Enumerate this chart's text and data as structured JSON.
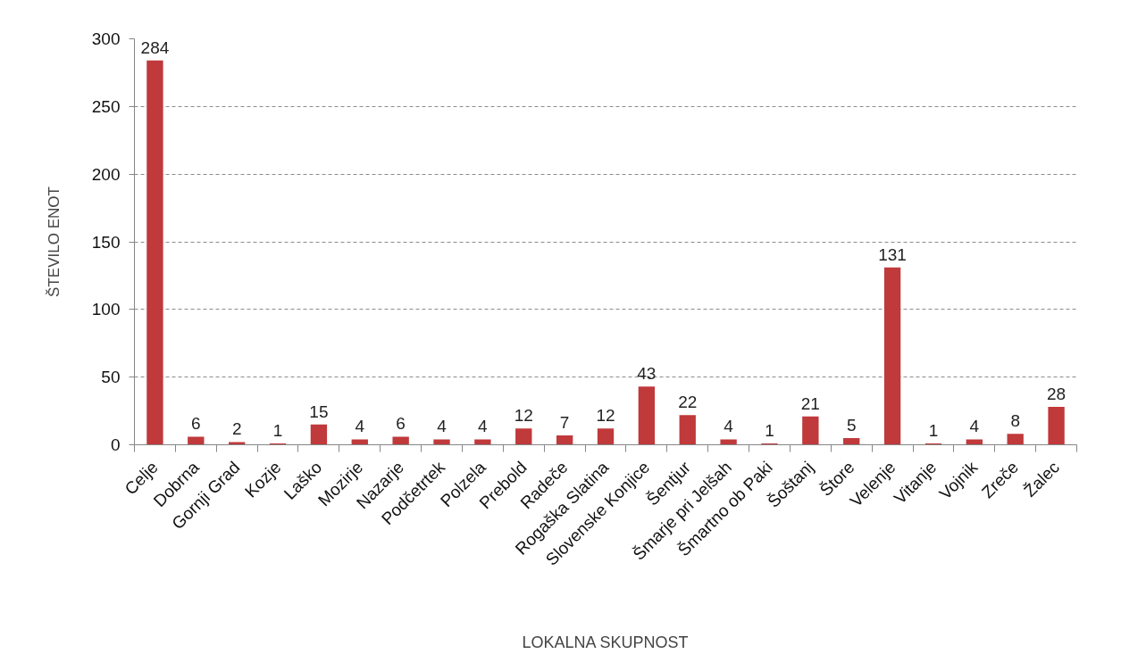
{
  "chart_data": {
    "type": "bar",
    "xlabel": "LOKALNA SKUPNOST",
    "ylabel": "ŠTEVILO ENOT",
    "categories": [
      "Celje",
      "Dobrna",
      "Gornji Grad",
      "Kozje",
      "Laško",
      "Mozirje",
      "Nazarje",
      "Podčetrtek",
      "Polzela",
      "Prebold",
      "Radeče",
      "Rogaška Slatina",
      "Slovenske Konjice",
      "Šentjur",
      "Šmarje pri Jelšah",
      "Šmartno ob Paki",
      "Šoštanj",
      "Štore",
      "Velenje",
      "Vitanje",
      "Vojnik",
      "Zreče",
      "Žalec"
    ],
    "values": [
      284,
      6,
      2,
      1,
      15,
      4,
      6,
      4,
      4,
      12,
      7,
      12,
      43,
      22,
      4,
      1,
      21,
      5,
      131,
      1,
      4,
      8,
      28
    ],
    "color": "#c0393b",
    "ylim": [
      0,
      300
    ],
    "yticks": [
      0,
      50,
      100,
      150,
      200,
      250,
      300
    ],
    "grid": "y",
    "data_labels": true
  }
}
